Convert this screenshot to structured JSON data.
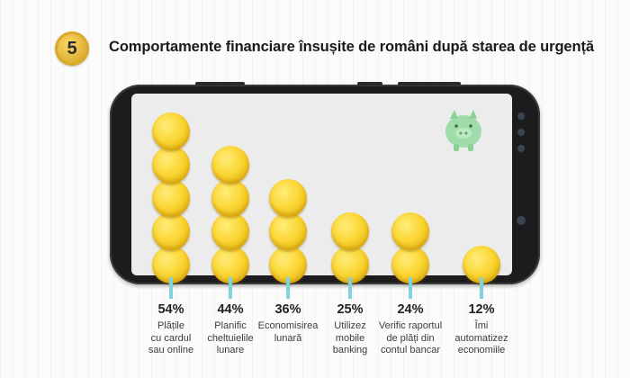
{
  "header": {
    "step_number": "5",
    "title": "Comportamente financiare însușite de români după starea de urgență"
  },
  "colors": {
    "coin": "#fbd735",
    "stem": "#7fd3dd",
    "badge": "#e2b53a",
    "piggy": "#9fdcaa"
  },
  "icons": {
    "badge": "circle-number-badge",
    "piggy": "piggy-bank-icon",
    "phone": "smartphone-frame"
  },
  "chart_data": {
    "type": "bar",
    "categories": [
      "Plățile cu cardul sau online",
      "Planific cheltuielile lunare",
      "Economisirea lunară",
      "Utilizez mobile banking",
      "Verific raportul de plăți din contul bancar",
      "Îmi automatizez economiile"
    ],
    "values": [
      54,
      44,
      36,
      25,
      24,
      12
    ],
    "value_labels": [
      "54%",
      "44%",
      "36%",
      "25%",
      "24%",
      "12%"
    ],
    "labels_display": [
      "Plățile\ncu cardul\nsau online",
      "Planific\ncheltuielile\nlunare",
      "Economisirea\nlunară",
      "Utilizez\nmobile\nbanking",
      "Verific raportul\nde plăți din\ncontul bancar",
      "Îmi\nautomatizez\neconomiile"
    ],
    "coins": [
      5,
      4,
      3,
      2,
      2,
      1
    ],
    "ylabel": "",
    "xlabel": ""
  }
}
